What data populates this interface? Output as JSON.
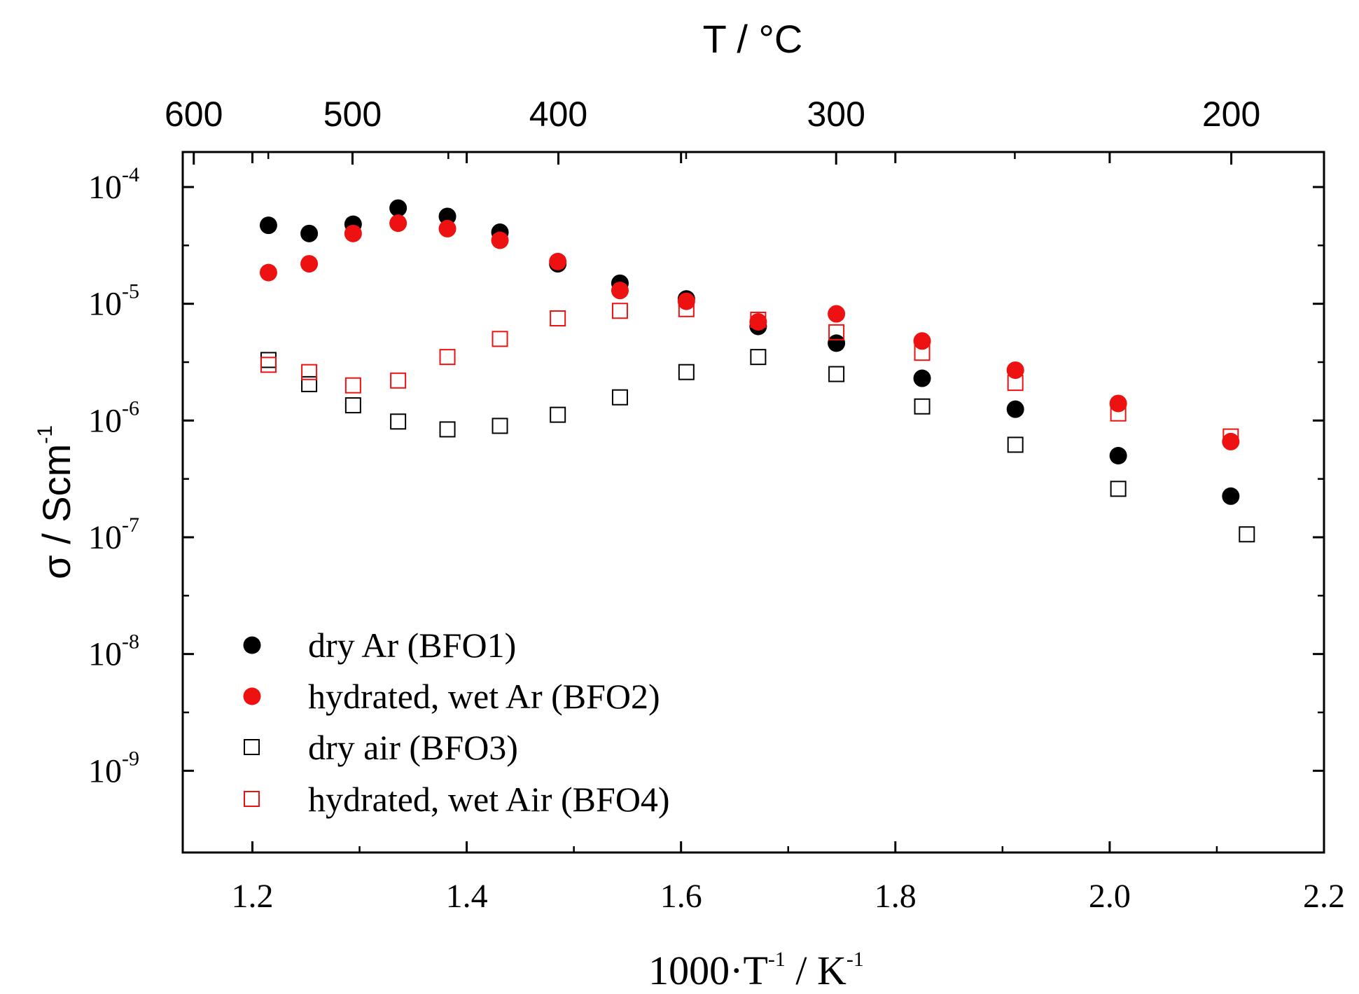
{
  "chart_data": {
    "type": "scatter",
    "x_scale": "linear",
    "y_scale": "log",
    "xlim": [
      1.135,
      2.2
    ],
    "ylim_log10": [
      -9.7,
      -3.7
    ],
    "xlabel": {
      "main": "1000·T",
      "sup1": "-1",
      "mid": " / K",
      "sup2": "-1"
    },
    "ylabel": {
      "main": "σ / Scm",
      "sup": "-1"
    },
    "x_ticks": [
      {
        "value": 1.2,
        "label": "1.2"
      },
      {
        "value": 1.4,
        "label": "1.4"
      },
      {
        "value": 1.6,
        "label": "1.6"
      },
      {
        "value": 1.8,
        "label": "1.8"
      },
      {
        "value": 2.0,
        "label": "2.0"
      },
      {
        "value": 2.2,
        "label": "2.2"
      }
    ],
    "y_ticks": [
      {
        "exp": -4,
        "base": "10",
        "sup": "-4"
      },
      {
        "exp": -5,
        "base": "10",
        "sup": "-5"
      },
      {
        "exp": -6,
        "base": "10",
        "sup": "-6"
      },
      {
        "exp": -7,
        "base": "10",
        "sup": "-7"
      },
      {
        "exp": -8,
        "base": "10",
        "sup": "-8"
      },
      {
        "exp": -9,
        "base": "10",
        "sup": "-9"
      }
    ],
    "top_axis": {
      "title": "T / °C",
      "ticks": [
        {
          "celsius": 600,
          "label": "600"
        },
        {
          "celsius": 500,
          "label": "500"
        },
        {
          "celsius": 400,
          "label": "400"
        },
        {
          "celsius": 300,
          "label": "300"
        },
        {
          "celsius": 200,
          "label": "200"
        }
      ],
      "minor_ticks_celsius": [
        550,
        450,
        350,
        250
      ]
    },
    "legend_position": "bottom-left",
    "series": [
      {
        "name": "dry Ar (BFO1)",
        "marker": "filled-circle",
        "color": "#000000",
        "points": [
          [
            1.215,
            4.7e-05
          ],
          [
            1.253,
            4e-05
          ],
          [
            1.294,
            4.8e-05
          ],
          [
            1.336,
            6.6e-05
          ],
          [
            1.382,
            5.6e-05
          ],
          [
            1.431,
            4.1e-05
          ],
          [
            1.485,
            2.2e-05
          ],
          [
            1.543,
            1.5e-05
          ],
          [
            1.605,
            1.1e-05
          ],
          [
            1.672,
            6.4e-06
          ],
          [
            1.745,
            4.6e-06
          ],
          [
            1.825,
            2.3e-06
          ],
          [
            1.912,
            1.25e-06
          ],
          [
            2.008,
            5e-07
          ],
          [
            2.113,
            2.25e-07
          ]
        ]
      },
      {
        "name": "hydrated, wet Ar (BFO2)",
        "marker": "filled-circle",
        "color": "#ee1111",
        "points": [
          [
            1.215,
            1.85e-05
          ],
          [
            1.253,
            2.2e-05
          ],
          [
            1.294,
            4e-05
          ],
          [
            1.336,
            4.9e-05
          ],
          [
            1.382,
            4.4e-05
          ],
          [
            1.431,
            3.5e-05
          ],
          [
            1.485,
            2.3e-05
          ],
          [
            1.543,
            1.3e-05
          ],
          [
            1.605,
            1.05e-05
          ],
          [
            1.672,
            7e-06
          ],
          [
            1.745,
            8.2e-06
          ],
          [
            1.825,
            4.8e-06
          ],
          [
            1.912,
            2.7e-06
          ],
          [
            2.008,
            1.4e-06
          ],
          [
            2.113,
            6.6e-07
          ]
        ]
      },
      {
        "name": "dry air (BFO3)",
        "marker": "open-square",
        "color": "#000000",
        "points": [
          [
            1.215,
            3.3e-06
          ],
          [
            1.253,
            2.05e-06
          ],
          [
            1.294,
            1.35e-06
          ],
          [
            1.336,
            9.8e-07
          ],
          [
            1.382,
            8.4e-07
          ],
          [
            1.431,
            9e-07
          ],
          [
            1.485,
            1.12e-06
          ],
          [
            1.543,
            1.58e-06
          ],
          [
            1.605,
            2.6e-06
          ],
          [
            1.672,
            3.5e-06
          ],
          [
            1.745,
            2.5e-06
          ],
          [
            1.825,
            1.32e-06
          ],
          [
            1.912,
            6.2e-07
          ],
          [
            2.008,
            2.6e-07
          ],
          [
            2.128,
            1.06e-07
          ]
        ]
      },
      {
        "name": "hydrated, wet Air (BFO4)",
        "marker": "open-square",
        "color": "#ee1111",
        "points": [
          [
            1.215,
            3e-06
          ],
          [
            1.253,
            2.6e-06
          ],
          [
            1.294,
            2e-06
          ],
          [
            1.336,
            2.2e-06
          ],
          [
            1.382,
            3.5e-06
          ],
          [
            1.431,
            5e-06
          ],
          [
            1.485,
            7.5e-06
          ],
          [
            1.543,
            8.7e-06
          ],
          [
            1.605,
            9e-06
          ],
          [
            1.672,
            7.3e-06
          ],
          [
            1.745,
            5.7e-06
          ],
          [
            1.825,
            3.8e-06
          ],
          [
            1.912,
            2.1e-06
          ],
          [
            2.008,
            1.15e-06
          ],
          [
            2.113,
            7.3e-07
          ]
        ]
      }
    ]
  }
}
